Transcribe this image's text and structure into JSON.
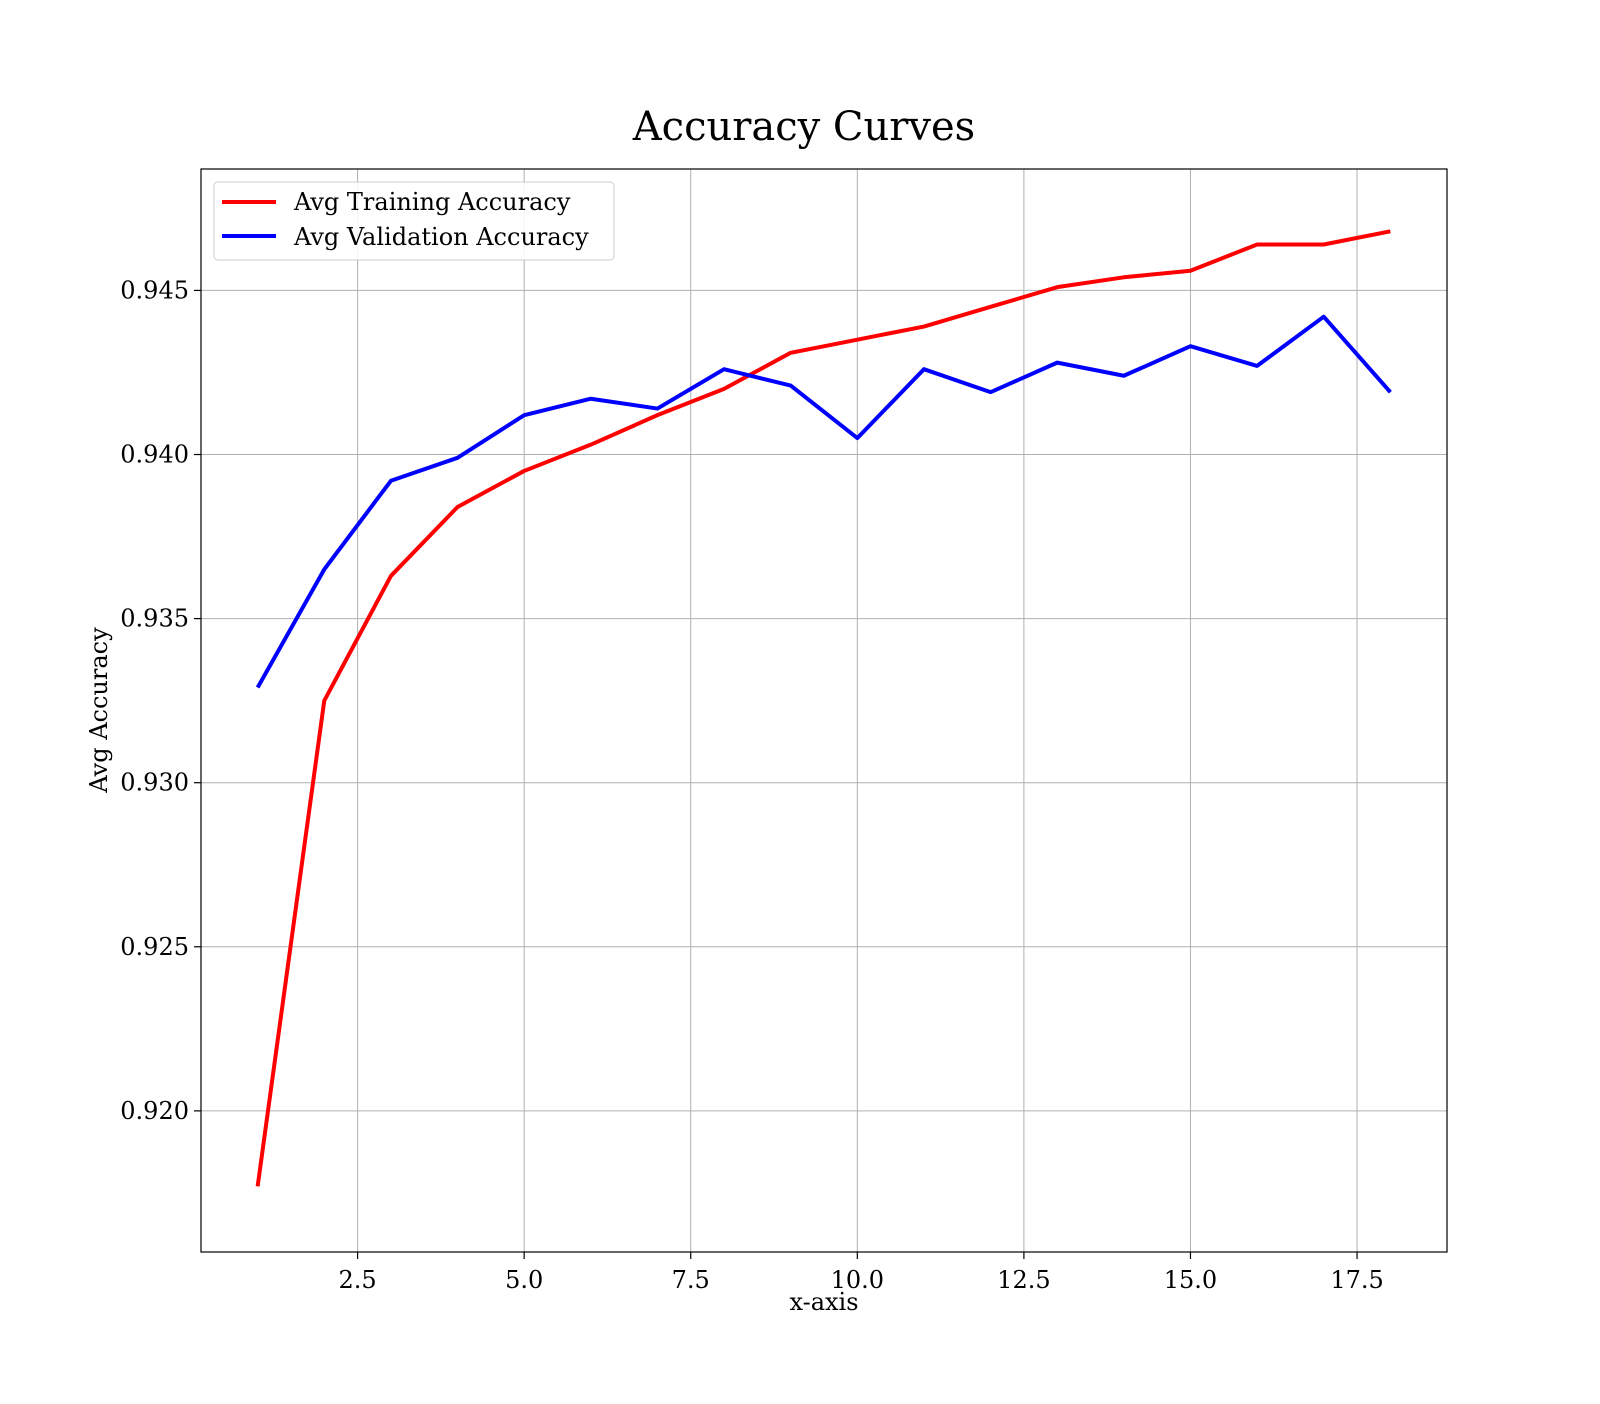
{
  "chart_data": {
    "type": "line",
    "title": "Accuracy Curves",
    "xlabel": "x-axis",
    "ylabel": "Avg Accuracy",
    "x": [
      1,
      2,
      3,
      4,
      5,
      6,
      7,
      8,
      9,
      10,
      11,
      12,
      13,
      14,
      15,
      16,
      17,
      18
    ],
    "series": [
      {
        "name": "Avg Training Accuracy",
        "color": "#ff0000",
        "values": [
          0.9177,
          0.9325,
          0.9363,
          0.9384,
          0.9395,
          0.9403,
          0.9412,
          0.942,
          0.9431,
          0.9435,
          0.9439,
          0.9445,
          0.9451,
          0.9454,
          0.9456,
          0.9464,
          0.9464,
          0.9468
        ]
      },
      {
        "name": "Avg Validation Accuracy",
        "color": "#0000ff",
        "values": [
          0.9329,
          0.9365,
          0.9392,
          0.9399,
          0.9412,
          0.9417,
          0.9414,
          0.9426,
          0.9421,
          0.9405,
          0.9426,
          0.9419,
          0.9428,
          0.9424,
          0.9433,
          0.9427,
          0.9442,
          0.9419
        ]
      }
    ],
    "xlim": [
      0.15,
      18.85
    ],
    "ylim": [
      0.9157,
      0.9487
    ],
    "xticks": [
      2.5,
      5.0,
      7.5,
      10.0,
      12.5,
      15.0,
      17.5
    ],
    "xtick_labels": [
      "2.5",
      "5.0",
      "7.5",
      "10.0",
      "12.5",
      "15.0",
      "17.5"
    ],
    "yticks": [
      0.92,
      0.925,
      0.93,
      0.935,
      0.94,
      0.945
    ],
    "ytick_labels": [
      "0.920",
      "0.925",
      "0.930",
      "0.935",
      "0.940",
      "0.945"
    ],
    "grid": true,
    "legend_position": "top-left"
  }
}
